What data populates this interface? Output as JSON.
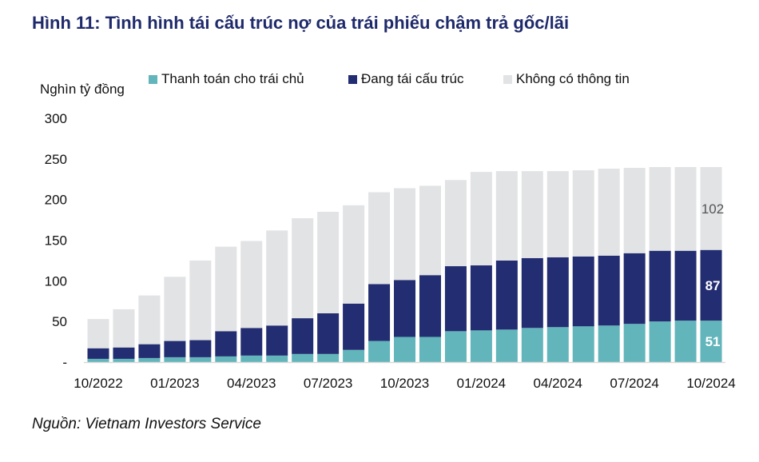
{
  "title": "Hình 11: Tình hình tái cấu trúc nợ của trái phiếu chậm trả gốc/lãi",
  "source": "Nguồn: Vietnam Investors Service",
  "chart_data": {
    "type": "bar",
    "stacked": true,
    "title": "",
    "ylabel": "Nghìn tỷ đồng",
    "xlabel": "",
    "ylim": [
      0,
      300
    ],
    "yticks": [
      0,
      50,
      100,
      150,
      200,
      250,
      300
    ],
    "ytick_labels": [
      "-",
      "50",
      "100",
      "150",
      "200",
      "250",
      "300"
    ],
    "grid": false,
    "legend_position": "top",
    "categories": [
      "10/2022",
      "11/2022",
      "12/2022",
      "01/2023",
      "02/2023",
      "03/2023",
      "04/2023",
      "05/2023",
      "06/2023",
      "07/2023",
      "08/2023",
      "09/2023",
      "10/2023",
      "11/2023",
      "12/2023",
      "01/2024",
      "02/2024",
      "03/2024",
      "04/2024",
      "05/2024",
      "06/2024",
      "07/2024",
      "08/2024",
      "09/2024",
      "10/2024"
    ],
    "xtick_labels": [
      "10/2022",
      "01/2023",
      "04/2023",
      "07/2023",
      "10/2023",
      "01/2024",
      "04/2024",
      "07/2024",
      "10/2024"
    ],
    "series": [
      {
        "name": "Thanh toán cho trái chủ",
        "color": "#62b5ba",
        "values": [
          4,
          4,
          5,
          6,
          6,
          7,
          8,
          8,
          10,
          10,
          15,
          26,
          31,
          31,
          38,
          39,
          40,
          42,
          43,
          44,
          45,
          47,
          50,
          51,
          51
        ]
      },
      {
        "name": "Đang tái cấu trúc",
        "color": "#232d71",
        "values": [
          13,
          14,
          17,
          20,
          21,
          31,
          34,
          37,
          44,
          50,
          57,
          70,
          70,
          76,
          80,
          80,
          85,
          86,
          86,
          86,
          86,
          87,
          87,
          86,
          87
        ]
      },
      {
        "name": "Không có thông tin",
        "color": "#e2e3e5",
        "values": [
          36,
          47,
          60,
          79,
          98,
          104,
          107,
          117,
          123,
          125,
          121,
          113,
          113,
          110,
          106,
          115,
          110,
          107,
          106,
          106,
          107,
          105,
          103,
          103,
          102
        ]
      }
    ],
    "data_labels": [
      {
        "category": "10/2024",
        "series": "Thanh toán cho trái chủ",
        "text": "51"
      },
      {
        "category": "10/2024",
        "series": "Đang tái cấu trúc",
        "text": "87"
      },
      {
        "category": "10/2024",
        "series": "Không có thông tin",
        "text": "102"
      }
    ]
  }
}
